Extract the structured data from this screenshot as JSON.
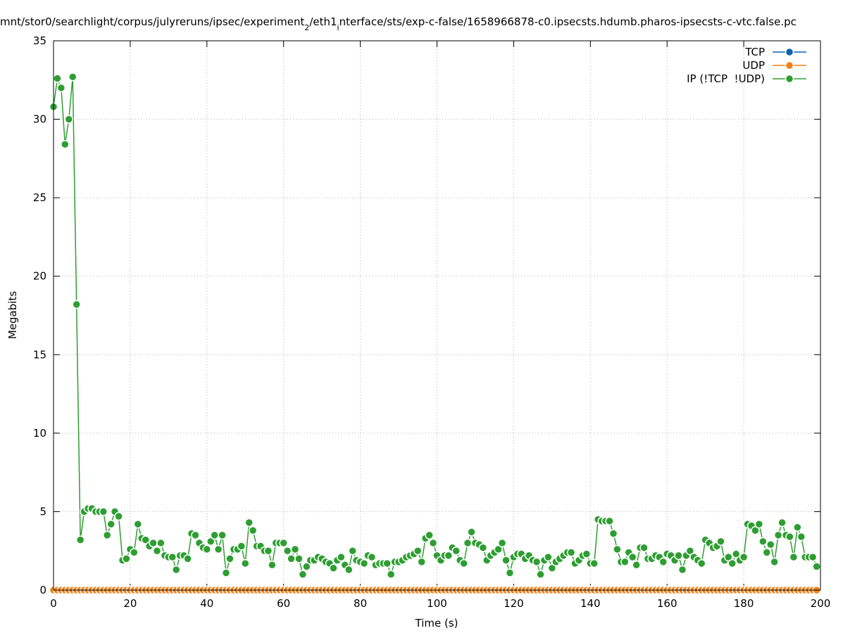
{
  "chart_data": {
    "type": "line",
    "title": [
      "mnt/stor0/searchlight/corpus/julyreruns/ipsec/experiment",
      "2",
      "/eth1",
      "i",
      "nterface/sts/exp-c-false/1658966878-c0.ipsecsts.hdumb.pharos-ipsecsts-c-vtc.false.pc"
    ],
    "x_label": "Time (s)",
    "y_label": "Megabits",
    "xlim": [
      0,
      200
    ],
    "xticks": [
      0,
      20,
      40,
      60,
      80,
      100,
      120,
      140,
      160,
      180,
      200
    ],
    "ylim": [
      0,
      35
    ],
    "yticks": [
      0,
      5,
      10,
      15,
      20,
      25,
      30,
      35
    ],
    "grid": true,
    "legend": "top-right",
    "x": [
      0,
      1,
      2,
      3,
      4,
      5,
      6,
      7,
      8,
      9,
      10,
      11,
      12,
      13,
      14,
      15,
      16,
      17,
      18,
      19,
      20,
      21,
      22,
      23,
      24,
      25,
      26,
      27,
      28,
      29,
      30,
      31,
      32,
      33,
      34,
      35,
      36,
      37,
      38,
      39,
      40,
      41,
      42,
      43,
      44,
      45,
      46,
      47,
      48,
      49,
      50,
      51,
      52,
      53,
      54,
      55,
      56,
      57,
      58,
      59,
      60,
      61,
      62,
      63,
      64,
      65,
      66,
      67,
      68,
      69,
      70,
      71,
      72,
      73,
      74,
      75,
      76,
      77,
      78,
      79,
      80,
      81,
      82,
      83,
      84,
      85,
      86,
      87,
      88,
      89,
      90,
      91,
      92,
      93,
      94,
      95,
      96,
      97,
      98,
      99,
      100,
      101,
      102,
      103,
      104,
      105,
      106,
      107,
      108,
      109,
      110,
      111,
      112,
      113,
      114,
      115,
      116,
      117,
      118,
      119,
      120,
      121,
      122,
      123,
      124,
      125,
      126,
      127,
      128,
      129,
      130,
      131,
      132,
      133,
      134,
      135,
      136,
      137,
      138,
      139,
      140,
      141,
      142,
      143,
      144,
      145,
      146,
      147,
      148,
      149,
      150,
      151,
      152,
      153,
      154,
      155,
      156,
      157,
      158,
      159,
      160,
      161,
      162,
      163,
      164,
      165,
      166,
      167,
      168,
      169,
      170,
      171,
      172,
      173,
      174,
      175,
      176,
      177,
      178,
      179,
      180,
      181,
      182,
      183,
      184,
      185,
      186,
      187,
      188,
      189,
      190,
      191,
      192,
      193,
      194,
      195,
      196,
      197,
      198,
      199
    ],
    "series": [
      {
        "name": "TCP",
        "color": "#0b64b0",
        "values": [
          0,
          0,
          0,
          0,
          0,
          0,
          0,
          0,
          0,
          0,
          0,
          0,
          0,
          0,
          0,
          0,
          0,
          0,
          0,
          0,
          0,
          0,
          0,
          0,
          0,
          0,
          0,
          0,
          0,
          0,
          0,
          0,
          0,
          0,
          0,
          0,
          0,
          0,
          0,
          0,
          0,
          0,
          0,
          0,
          0,
          0,
          0,
          0,
          0,
          0,
          0,
          0,
          0,
          0,
          0,
          0,
          0,
          0,
          0,
          0,
          0,
          0,
          0,
          0,
          0,
          0,
          0,
          0,
          0,
          0,
          0,
          0,
          0,
          0,
          0,
          0,
          0,
          0,
          0,
          0,
          0,
          0,
          0,
          0,
          0,
          0,
          0,
          0,
          0,
          0,
          0,
          0,
          0,
          0,
          0,
          0,
          0,
          0,
          0,
          0,
          0,
          0,
          0,
          0,
          0,
          0,
          0,
          0,
          0,
          0,
          0,
          0,
          0,
          0,
          0,
          0,
          0,
          0,
          0,
          0,
          0,
          0,
          0,
          0,
          0,
          0,
          0,
          0,
          0,
          0,
          0,
          0,
          0,
          0,
          0,
          0,
          0,
          0,
          0,
          0,
          0,
          0,
          0,
          0,
          0,
          0,
          0,
          0,
          0,
          0,
          0,
          0,
          0,
          0,
          0,
          0,
          0,
          0,
          0,
          0,
          0,
          0,
          0,
          0,
          0,
          0,
          0,
          0,
          0,
          0,
          0,
          0,
          0,
          0,
          0,
          0,
          0,
          0,
          0,
          0,
          0,
          0,
          0,
          0,
          0,
          0,
          0,
          0,
          0,
          0,
          0,
          0,
          0,
          0,
          0,
          0,
          0,
          0,
          0,
          0
        ]
      },
      {
        "name": "UDP",
        "color": "#f28015",
        "values": [
          0,
          0,
          0,
          0,
          0,
          0,
          0,
          0,
          0,
          0,
          0,
          0,
          0,
          0,
          0,
          0,
          0,
          0,
          0,
          0,
          0,
          0,
          0,
          0,
          0,
          0,
          0,
          0,
          0,
          0,
          0,
          0,
          0,
          0,
          0,
          0,
          0,
          0,
          0,
          0,
          0,
          0,
          0,
          0,
          0,
          0,
          0,
          0,
          0,
          0,
          0,
          0,
          0,
          0,
          0,
          0,
          0,
          0,
          0,
          0,
          0,
          0,
          0,
          0,
          0,
          0,
          0,
          0,
          0,
          0,
          0,
          0,
          0,
          0,
          0,
          0,
          0,
          0,
          0,
          0,
          0,
          0,
          0,
          0,
          0,
          0,
          0,
          0,
          0,
          0,
          0,
          0,
          0,
          0,
          0,
          0,
          0,
          0,
          0,
          0,
          0,
          0,
          0,
          0,
          0,
          0,
          0,
          0,
          0,
          0,
          0,
          0,
          0,
          0,
          0,
          0,
          0,
          0,
          0,
          0,
          0,
          0,
          0,
          0,
          0,
          0,
          0,
          0,
          0,
          0,
          0,
          0,
          0,
          0,
          0,
          0,
          0,
          0,
          0,
          0,
          0,
          0,
          0,
          0,
          0,
          0,
          0,
          0,
          0,
          0,
          0,
          0,
          0,
          0,
          0,
          0,
          0,
          0,
          0,
          0,
          0,
          0,
          0,
          0,
          0,
          0,
          0,
          0,
          0,
          0,
          0,
          0,
          0,
          0,
          0,
          0,
          0,
          0,
          0,
          0,
          0,
          0,
          0,
          0,
          0,
          0,
          0,
          0,
          0,
          0,
          0,
          0,
          0,
          0,
          0,
          0,
          0,
          0,
          0,
          0
        ]
      },
      {
        "name": "IP (!TCP  !UDP)",
        "color": "#2e9e32",
        "values": [
          30.8,
          32.6,
          32.0,
          28.4,
          30.0,
          32.7,
          18.2,
          3.2,
          5.0,
          5.2,
          5.2,
          5.0,
          5.0,
          5.0,
          3.5,
          4.2,
          5.0,
          4.7,
          1.9,
          2.0,
          2.6,
          2.4,
          4.2,
          3.3,
          3.2,
          2.8,
          3.0,
          2.5,
          3.0,
          2.2,
          2.1,
          2.1,
          1.3,
          2.2,
          2.2,
          2.0,
          3.6,
          3.5,
          3.0,
          2.7,
          2.6,
          3.1,
          3.5,
          2.6,
          3.5,
          1.1,
          2.0,
          2.6,
          2.6,
          2.8,
          1.7,
          4.3,
          3.8,
          2.8,
          2.8,
          2.5,
          2.5,
          1.6,
          3.0,
          3.0,
          3.0,
          2.5,
          2.0,
          2.6,
          2.0,
          1.0,
          1.5,
          1.9,
          1.9,
          2.1,
          2.0,
          1.8,
          1.7,
          1.4,
          1.9,
          2.1,
          1.6,
          1.3,
          2.5,
          1.9,
          1.8,
          1.7,
          2.2,
          2.1,
          1.6,
          1.7,
          1.7,
          1.7,
          1.0,
          1.8,
          1.8,
          1.9,
          2.1,
          2.2,
          2.3,
          2.5,
          1.8,
          3.3,
          3.5,
          3.0,
          2.2,
          1.9,
          2.2,
          2.2,
          2.7,
          2.5,
          1.9,
          1.7,
          3.0,
          3.7,
          3.0,
          2.9,
          2.7,
          1.9,
          2.2,
          2.4,
          2.6,
          3.0,
          1.9,
          1.1,
          2.1,
          2.3,
          2.3,
          2.0,
          2.2,
          1.9,
          1.8,
          1.0,
          1.9,
          2.1,
          1.4,
          1.8,
          2.0,
          2.2,
          2.4,
          2.4,
          1.7,
          1.9,
          2.2,
          2.3,
          1.7,
          1.7,
          4.5,
          4.4,
          4.4,
          4.4,
          3.6,
          2.6,
          1.8,
          1.8,
          2.4,
          2.1,
          1.6,
          2.7,
          2.7,
          2.0,
          2.0,
          2.2,
          2.1,
          1.8,
          2.3,
          2.2,
          1.9,
          2.2,
          1.3,
          2.2,
          2.5,
          2.1,
          1.9,
          1.7,
          3.2,
          3.0,
          2.7,
          2.8,
          3.1,
          1.9,
          2.1,
          1.7,
          2.3,
          1.9,
          2.1,
          4.2,
          4.1,
          3.8,
          4.2,
          3.1,
          2.4,
          2.9,
          1.8,
          3.5,
          4.3,
          3.5,
          3.4,
          2.1,
          4.0,
          3.4,
          2.1,
          2.1,
          2.1,
          1.5
        ]
      }
    ]
  }
}
